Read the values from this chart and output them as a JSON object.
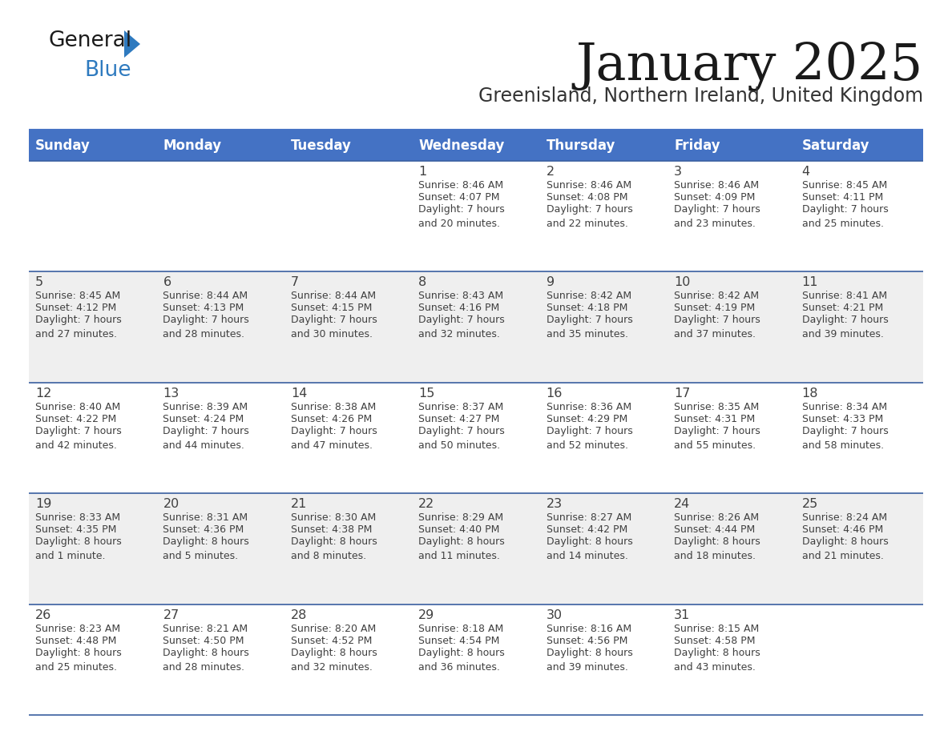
{
  "title": "January 2025",
  "subtitle": "Greenisland, Northern Ireland, United Kingdom",
  "header_bg": "#4472C4",
  "header_text_color": "#FFFFFF",
  "day_names": [
    "Sunday",
    "Monday",
    "Tuesday",
    "Wednesday",
    "Thursday",
    "Friday",
    "Saturday"
  ],
  "cell_bg_white": "#FFFFFF",
  "cell_bg_gray": "#EFEFEF",
  "row_line_color": "#3A5FA0",
  "text_color": "#404040",
  "title_color": "#1a1a1a",
  "subtitle_color": "#333333",
  "logo_general_color": "#1a1a1a",
  "logo_blue_color": "#2E7ABF",
  "calendar": [
    [
      {
        "day": "",
        "sunrise": "",
        "sunset": "",
        "daylight": ""
      },
      {
        "day": "",
        "sunrise": "",
        "sunset": "",
        "daylight": ""
      },
      {
        "day": "",
        "sunrise": "",
        "sunset": "",
        "daylight": ""
      },
      {
        "day": "1",
        "sunrise": "Sunrise: 8:46 AM",
        "sunset": "Sunset: 4:07 PM",
        "daylight": "Daylight: 7 hours\nand 20 minutes."
      },
      {
        "day": "2",
        "sunrise": "Sunrise: 8:46 AM",
        "sunset": "Sunset: 4:08 PM",
        "daylight": "Daylight: 7 hours\nand 22 minutes."
      },
      {
        "day": "3",
        "sunrise": "Sunrise: 8:46 AM",
        "sunset": "Sunset: 4:09 PM",
        "daylight": "Daylight: 7 hours\nand 23 minutes."
      },
      {
        "day": "4",
        "sunrise": "Sunrise: 8:45 AM",
        "sunset": "Sunset: 4:11 PM",
        "daylight": "Daylight: 7 hours\nand 25 minutes."
      }
    ],
    [
      {
        "day": "5",
        "sunrise": "Sunrise: 8:45 AM",
        "sunset": "Sunset: 4:12 PM",
        "daylight": "Daylight: 7 hours\nand 27 minutes."
      },
      {
        "day": "6",
        "sunrise": "Sunrise: 8:44 AM",
        "sunset": "Sunset: 4:13 PM",
        "daylight": "Daylight: 7 hours\nand 28 minutes."
      },
      {
        "day": "7",
        "sunrise": "Sunrise: 8:44 AM",
        "sunset": "Sunset: 4:15 PM",
        "daylight": "Daylight: 7 hours\nand 30 minutes."
      },
      {
        "day": "8",
        "sunrise": "Sunrise: 8:43 AM",
        "sunset": "Sunset: 4:16 PM",
        "daylight": "Daylight: 7 hours\nand 32 minutes."
      },
      {
        "day": "9",
        "sunrise": "Sunrise: 8:42 AM",
        "sunset": "Sunset: 4:18 PM",
        "daylight": "Daylight: 7 hours\nand 35 minutes."
      },
      {
        "day": "10",
        "sunrise": "Sunrise: 8:42 AM",
        "sunset": "Sunset: 4:19 PM",
        "daylight": "Daylight: 7 hours\nand 37 minutes."
      },
      {
        "day": "11",
        "sunrise": "Sunrise: 8:41 AM",
        "sunset": "Sunset: 4:21 PM",
        "daylight": "Daylight: 7 hours\nand 39 minutes."
      }
    ],
    [
      {
        "day": "12",
        "sunrise": "Sunrise: 8:40 AM",
        "sunset": "Sunset: 4:22 PM",
        "daylight": "Daylight: 7 hours\nand 42 minutes."
      },
      {
        "day": "13",
        "sunrise": "Sunrise: 8:39 AM",
        "sunset": "Sunset: 4:24 PM",
        "daylight": "Daylight: 7 hours\nand 44 minutes."
      },
      {
        "day": "14",
        "sunrise": "Sunrise: 8:38 AM",
        "sunset": "Sunset: 4:26 PM",
        "daylight": "Daylight: 7 hours\nand 47 minutes."
      },
      {
        "day": "15",
        "sunrise": "Sunrise: 8:37 AM",
        "sunset": "Sunset: 4:27 PM",
        "daylight": "Daylight: 7 hours\nand 50 minutes."
      },
      {
        "day": "16",
        "sunrise": "Sunrise: 8:36 AM",
        "sunset": "Sunset: 4:29 PM",
        "daylight": "Daylight: 7 hours\nand 52 minutes."
      },
      {
        "day": "17",
        "sunrise": "Sunrise: 8:35 AM",
        "sunset": "Sunset: 4:31 PM",
        "daylight": "Daylight: 7 hours\nand 55 minutes."
      },
      {
        "day": "18",
        "sunrise": "Sunrise: 8:34 AM",
        "sunset": "Sunset: 4:33 PM",
        "daylight": "Daylight: 7 hours\nand 58 minutes."
      }
    ],
    [
      {
        "day": "19",
        "sunrise": "Sunrise: 8:33 AM",
        "sunset": "Sunset: 4:35 PM",
        "daylight": "Daylight: 8 hours\nand 1 minute."
      },
      {
        "day": "20",
        "sunrise": "Sunrise: 8:31 AM",
        "sunset": "Sunset: 4:36 PM",
        "daylight": "Daylight: 8 hours\nand 5 minutes."
      },
      {
        "day": "21",
        "sunrise": "Sunrise: 8:30 AM",
        "sunset": "Sunset: 4:38 PM",
        "daylight": "Daylight: 8 hours\nand 8 minutes."
      },
      {
        "day": "22",
        "sunrise": "Sunrise: 8:29 AM",
        "sunset": "Sunset: 4:40 PM",
        "daylight": "Daylight: 8 hours\nand 11 minutes."
      },
      {
        "day": "23",
        "sunrise": "Sunrise: 8:27 AM",
        "sunset": "Sunset: 4:42 PM",
        "daylight": "Daylight: 8 hours\nand 14 minutes."
      },
      {
        "day": "24",
        "sunrise": "Sunrise: 8:26 AM",
        "sunset": "Sunset: 4:44 PM",
        "daylight": "Daylight: 8 hours\nand 18 minutes."
      },
      {
        "day": "25",
        "sunrise": "Sunrise: 8:24 AM",
        "sunset": "Sunset: 4:46 PM",
        "daylight": "Daylight: 8 hours\nand 21 minutes."
      }
    ],
    [
      {
        "day": "26",
        "sunrise": "Sunrise: 8:23 AM",
        "sunset": "Sunset: 4:48 PM",
        "daylight": "Daylight: 8 hours\nand 25 minutes."
      },
      {
        "day": "27",
        "sunrise": "Sunrise: 8:21 AM",
        "sunset": "Sunset: 4:50 PM",
        "daylight": "Daylight: 8 hours\nand 28 minutes."
      },
      {
        "day": "28",
        "sunrise": "Sunrise: 8:20 AM",
        "sunset": "Sunset: 4:52 PM",
        "daylight": "Daylight: 8 hours\nand 32 minutes."
      },
      {
        "day": "29",
        "sunrise": "Sunrise: 8:18 AM",
        "sunset": "Sunset: 4:54 PM",
        "daylight": "Daylight: 8 hours\nand 36 minutes."
      },
      {
        "day": "30",
        "sunrise": "Sunrise: 8:16 AM",
        "sunset": "Sunset: 4:56 PM",
        "daylight": "Daylight: 8 hours\nand 39 minutes."
      },
      {
        "day": "31",
        "sunrise": "Sunrise: 8:15 AM",
        "sunset": "Sunset: 4:58 PM",
        "daylight": "Daylight: 8 hours\nand 43 minutes."
      },
      {
        "day": "",
        "sunrise": "",
        "sunset": "",
        "daylight": ""
      }
    ]
  ],
  "row_bg_colors": [
    "#FFFFFF",
    "#EFEFEF",
    "#FFFFFF",
    "#EFEFEF",
    "#FFFFFF"
  ]
}
